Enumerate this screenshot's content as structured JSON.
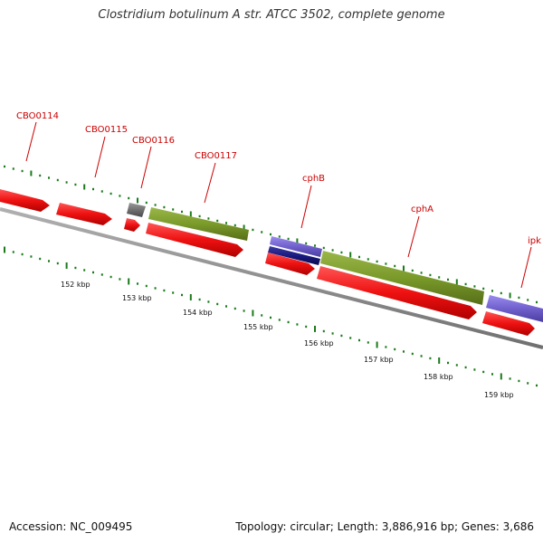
{
  "title": "Clostridium botulinum A str. ATCC 3502, complete genome",
  "footer": {
    "accession": "Accession: NC_009495",
    "topology": "Topology: circular; Length: 3,886,916 bp; Genes: 3,686"
  },
  "colors": {
    "label": "#cc0000",
    "tick": "#1a7a1a",
    "backbone": "#8a8a8a",
    "cds": "#ee1111",
    "rna_olive": "#7a9a2a",
    "rna_gray": "#707070",
    "rna_blue": "#7060cc",
    "rna_navy": "#1a1a80"
  },
  "ruler_labels": [
    "152 kbp",
    "153 kbp",
    "154 kbp",
    "155 kbp",
    "156 kbp",
    "157 kbp",
    "158 kbp",
    "159 kbp"
  ],
  "gene_labels": [
    "CBO0114",
    "CBO0115",
    "CBO0116",
    "CBO0117",
    "cphB",
    "cphA",
    "ipk"
  ],
  "features": [
    {
      "gene": "CBO0114",
      "kind": "cds",
      "track": "upper",
      "strand": "+"
    },
    {
      "gene": "CBO0115",
      "kind": "cds",
      "track": "upper",
      "strand": "+"
    },
    {
      "gene": "CBO0116",
      "kind": "cds",
      "track": "upper",
      "strand": "+"
    },
    {
      "gene": "CBO0116",
      "kind": "rna_gray",
      "track": "top",
      "strand": "+"
    },
    {
      "gene": "CBO0117",
      "kind": "cds",
      "track": "upper",
      "strand": "+"
    },
    {
      "gene": "CBO0117",
      "kind": "rna_olive",
      "track": "top",
      "strand": "+"
    },
    {
      "gene": "cphB",
      "kind": "cds",
      "track": "upper",
      "strand": "+"
    },
    {
      "gene": "cphB",
      "kind": "rna_blue",
      "track": "top",
      "strand": "+"
    },
    {
      "gene": "cphB",
      "kind": "rna_navy",
      "track": "mid",
      "strand": "+"
    },
    {
      "gene": "cphA",
      "kind": "cds",
      "track": "upper",
      "strand": "+"
    },
    {
      "gene": "cphA",
      "kind": "rna_olive",
      "track": "top",
      "strand": "+"
    },
    {
      "gene": "ipk",
      "kind": "cds",
      "track": "upper",
      "strand": "+"
    },
    {
      "gene": "ipk",
      "kind": "rna_blue",
      "track": "top",
      "strand": "+"
    }
  ]
}
